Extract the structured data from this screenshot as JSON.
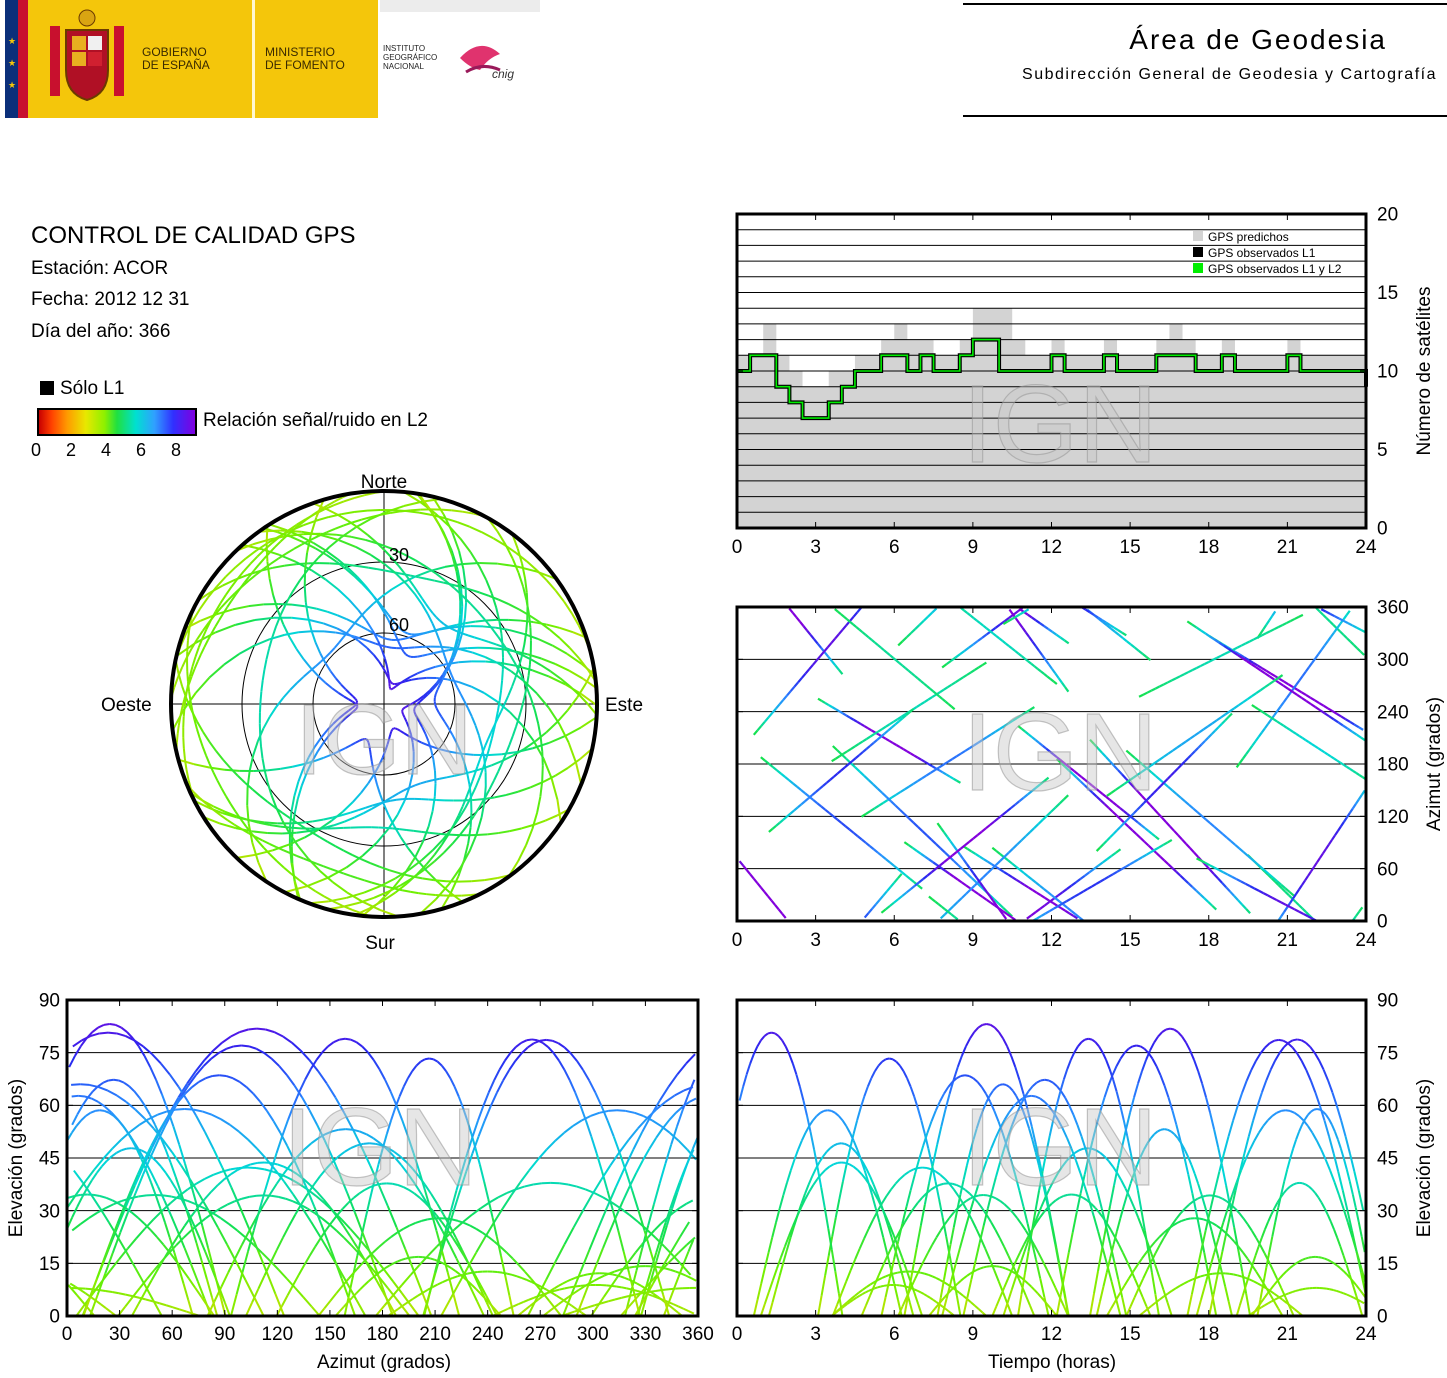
{
  "header": {
    "gov_line1": "GOBIERNO",
    "gov_line2": "DE ESPAÑA",
    "min_line1": "MINISTERIO",
    "min_line2": "DE FOMENTO",
    "ign_line1": "INSTITUTO",
    "ign_line2": "GEOGRÁFICO",
    "ign_line3": "NACIONAL",
    "cnig": "cnig",
    "area_title": "Área de Geodesia",
    "area_subtitle": "Subdirección General de Geodesia y Cartografía"
  },
  "info": {
    "title": "CONTROL DE CALIDAD GPS",
    "station": "Estación: ACOR",
    "date": "Fecha: 2012 12 31",
    "doy": "Día del año: 366",
    "legend_l1": "Sólo L1",
    "colorbar_label": "Relación señal/ruido en L2",
    "colorbar_ticks": [
      "0",
      "2",
      "4",
      "6",
      "8"
    ]
  },
  "watermark": "IGN",
  "chart_data": [
    {
      "id": "satellite-count",
      "type": "area",
      "ylabel": "Número de satélites",
      "xlim": [
        0,
        24
      ],
      "ylim": [
        0,
        20
      ],
      "xticks": [
        "0",
        "3",
        "6",
        "9",
        "12",
        "15",
        "18",
        "21",
        "24"
      ],
      "yticks": [
        "0",
        "5",
        "10",
        "15",
        "20"
      ],
      "legend": [
        "GPS predichos",
        "GPS observados L1",
        "GPS observados L1 y L2"
      ],
      "legend_position": "top-right",
      "grid": true,
      "x": [
        0,
        0.5,
        1,
        1.5,
        2,
        2.5,
        3,
        3.5,
        4,
        4.5,
        5,
        5.5,
        6,
        6.5,
        7,
        7.5,
        8,
        8.5,
        9,
        9.5,
        10,
        10.5,
        11,
        11.5,
        12,
        12.5,
        13,
        13.5,
        14,
        14.5,
        15,
        15.5,
        16,
        16.5,
        17,
        17.5,
        18,
        18.5,
        19,
        19.5,
        20,
        20.5,
        21,
        21.5,
        22,
        22.5,
        23,
        23.5,
        24
      ],
      "series": [
        {
          "name": "GPS predichos",
          "values": [
            11,
            11,
            13,
            11,
            10,
            9,
            9,
            10,
            10,
            11,
            11,
            12,
            13,
            12,
            12,
            11,
            11,
            12,
            14,
            14,
            14,
            12,
            11,
            11,
            12,
            11,
            11,
            11,
            12,
            11,
            11,
            11,
            12,
            13,
            12,
            11,
            11,
            12,
            11,
            11,
            11,
            11,
            12,
            11,
            11,
            11,
            11,
            11,
            11
          ]
        },
        {
          "name": "GPS observados L1 y L2",
          "values": [
            10,
            11,
            11,
            9,
            8,
            7,
            7,
            8,
            9,
            10,
            10,
            11,
            11,
            10,
            11,
            10,
            10,
            11,
            12,
            12,
            10,
            10,
            10,
            10,
            11,
            10,
            10,
            10,
            11,
            10,
            10,
            10,
            11,
            11,
            11,
            10,
            10,
            11,
            10,
            10,
            10,
            10,
            11,
            10,
            10,
            10,
            10,
            10,
            9
          ]
        }
      ]
    },
    {
      "id": "azimuth-time",
      "type": "scatter",
      "ylabel": "Azimut (grados)",
      "xlim": [
        0,
        24
      ],
      "ylim": [
        0,
        360
      ],
      "xticks": [
        "0",
        "3",
        "6",
        "9",
        "12",
        "15",
        "18",
        "21",
        "24"
      ],
      "yticks": [
        "0",
        "60",
        "120",
        "180",
        "240",
        "300",
        "360"
      ],
      "grid": true
    },
    {
      "id": "sky-plot",
      "type": "scatter",
      "labels": {
        "north": "Norte",
        "south": "Sur",
        "east": "Este",
        "west": "Oeste"
      },
      "rings": [
        "30",
        "60"
      ]
    },
    {
      "id": "elevation-azimuth",
      "type": "scatter",
      "xlabel": "Azimut (grados)",
      "ylabel": "Elevación (grados)",
      "xlim": [
        0,
        360
      ],
      "ylim": [
        0,
        90
      ],
      "xticks": [
        "0",
        "30",
        "60",
        "90",
        "120",
        "150",
        "180",
        "210",
        "240",
        "270",
        "300",
        "330",
        "360"
      ],
      "yticks": [
        "0",
        "15",
        "30",
        "45",
        "60",
        "75",
        "90"
      ],
      "grid": true
    },
    {
      "id": "elevation-time",
      "type": "scatter",
      "xlabel": "Tiempo (horas)",
      "ylabel": "Elevación (grados)",
      "xlim": [
        0,
        24
      ],
      "ylim": [
        0,
        90
      ],
      "xticks": [
        "0",
        "3",
        "6",
        "9",
        "12",
        "15",
        "18",
        "21",
        "24"
      ],
      "yticks": [
        "0",
        "15",
        "30",
        "45",
        "60",
        "75",
        "90"
      ],
      "grid": true
    }
  ]
}
